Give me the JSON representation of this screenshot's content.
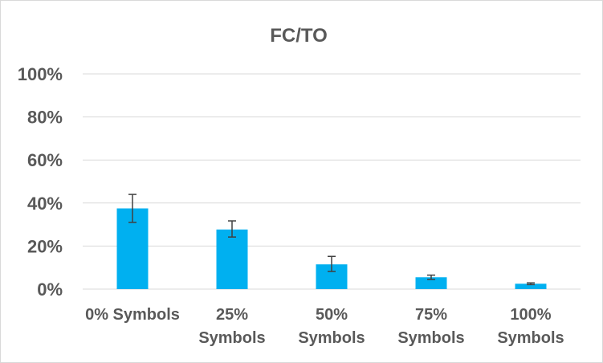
{
  "chart_data": {
    "type": "bar",
    "title": "FC/TO",
    "xlabel": "",
    "ylabel": "",
    "categories": [
      [
        "0% Symbols"
      ],
      [
        "25%",
        "Symbols"
      ],
      [
        "50%",
        "Symbols"
      ],
      [
        "75%",
        "Symbols"
      ],
      [
        "100%",
        "Symbols"
      ]
    ],
    "values": [
      37.5,
      27.7,
      11.5,
      5.5,
      2.5
    ],
    "error_low": [
      6.5,
      3.5,
      3.3,
      1.0,
      0.4
    ],
    "error_high": [
      6.5,
      4.0,
      3.7,
      1.0,
      0.4
    ],
    "y_ticks": [
      "0%",
      "20%",
      "40%",
      "60%",
      "80%",
      "100%"
    ],
    "ylim": [
      0,
      100
    ],
    "grid": true,
    "legend": "none",
    "bar_color": "#00b0f0",
    "error_bar_color": "#404040",
    "grid_color": "#d9d9d9"
  }
}
